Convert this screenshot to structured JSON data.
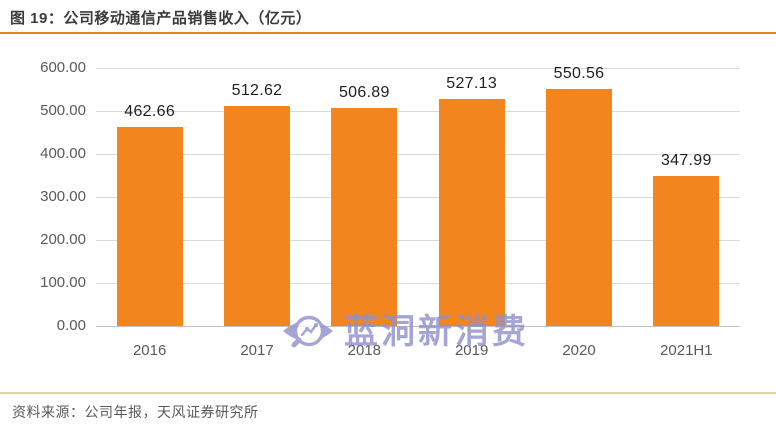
{
  "header": {
    "figure_label": "图 19：公司移动通信产品销售收入（亿元）"
  },
  "footer": {
    "source": "资料来源：公司年报，天风证券研究所"
  },
  "watermark": {
    "text": "蓝洞新消费",
    "logo": "eye-magnifier-chart-logo",
    "color": "#9191CC"
  },
  "colors": {
    "bar": "#F2851D",
    "title_text": "#3B3B3B",
    "header_divider": "#E8821C",
    "footer_divider": "#E2D3A8",
    "axis_text": "#595959",
    "data_label": "#1F1F1F",
    "gridline": "#D9D9D9",
    "axis_line": "#BFBFBF",
    "background": "#FFFFFF"
  },
  "chart_data": {
    "type": "bar",
    "title": "公司移动通信产品销售收入（亿元）",
    "categories": [
      "2016",
      "2017",
      "2018",
      "2019",
      "2020",
      "2021H1"
    ],
    "values": [
      462.66,
      512.62,
      506.89,
      527.13,
      550.56,
      347.99
    ],
    "data_labels": [
      "462.66",
      "512.62",
      "506.89",
      "527.13",
      "550.56",
      "347.99"
    ],
    "xlabel": "",
    "ylabel": "",
    "ylim": [
      0,
      600
    ],
    "ytick_step": 100,
    "ytick_labels": [
      "0.00",
      "100.00",
      "200.00",
      "300.00",
      "400.00",
      "500.00",
      "600.00"
    ],
    "grid": true,
    "legend": false,
    "bar_color": "#F2851D"
  }
}
